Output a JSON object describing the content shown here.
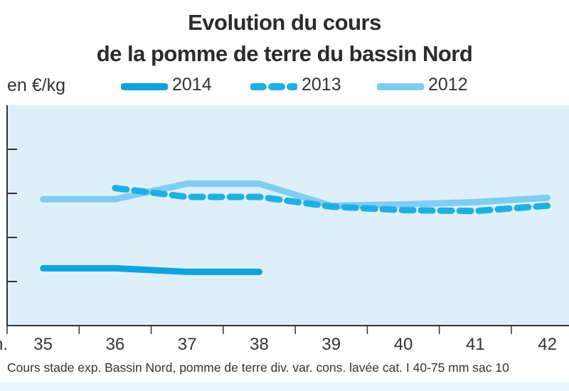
{
  "chart_data": {
    "type": "line",
    "title_line1": "Evolution du cours",
    "title_line2": "de la pomme de terre du bassin Nord",
    "unit_label": "en €/kg",
    "x_tick_prefix": "n.",
    "footnote": "Cours stade exp. Bassin Nord, pomme de terre div. var. cons. lavée cat. I 40-75 mm sac 10",
    "categories": [
      "35",
      "36",
      "37",
      "38",
      "39",
      "40",
      "41",
      "42"
    ],
    "xlim": [
      34.5,
      42.3
    ],
    "ylim": [
      0,
      5
    ],
    "y_gridlines": [
      1,
      2,
      3,
      4
    ],
    "grid": false,
    "background_color": "#ddf0fa",
    "series": [
      {
        "name": "2014",
        "style": "solid-thick",
        "color": "#0ea4db",
        "points": [
          [
            35,
            1.3
          ],
          [
            36,
            1.3
          ],
          [
            37,
            1.22
          ],
          [
            38,
            1.22
          ]
        ]
      },
      {
        "name": "2013",
        "style": "dashed",
        "color": "#1fb0e3",
        "points": [
          [
            36,
            3.12
          ],
          [
            37,
            2.92
          ],
          [
            38,
            2.92
          ],
          [
            39,
            2.7
          ],
          [
            40,
            2.62
          ],
          [
            41,
            2.6
          ],
          [
            42,
            2.72
          ]
        ]
      },
      {
        "name": "2012",
        "style": "solid-light",
        "color": "#7fcdf0",
        "points": [
          [
            35,
            2.87
          ],
          [
            36,
            2.87
          ],
          [
            37,
            3.22
          ],
          [
            38,
            3.22
          ],
          [
            39,
            2.72
          ],
          [
            40,
            2.75
          ],
          [
            41,
            2.8
          ],
          [
            42,
            2.9
          ]
        ]
      }
    ],
    "legend": [
      "2014",
      "2013",
      "2012"
    ],
    "legend_position": "top"
  }
}
